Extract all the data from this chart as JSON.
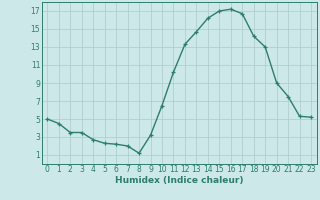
{
  "x": [
    0,
    1,
    2,
    3,
    4,
    5,
    6,
    7,
    8,
    9,
    10,
    11,
    12,
    13,
    14,
    15,
    16,
    17,
    18,
    19,
    20,
    21,
    22,
    23
  ],
  "y": [
    5,
    4.5,
    3.5,
    3.5,
    2.7,
    2.3,
    2.2,
    2.0,
    1.2,
    3.2,
    6.5,
    10.2,
    13.3,
    14.7,
    16.2,
    17.0,
    17.2,
    16.7,
    14.2,
    13.0,
    9.0,
    7.5,
    5.3,
    5.2
  ],
  "line_color": "#2e7d6e",
  "marker": "+",
  "marker_size": 3,
  "line_width": 1.0,
  "bg_color": "#cce8e8",
  "grid_color": "#aacccc",
  "xlabel": "Humidex (Indice chaleur)",
  "xlabel_fontsize": 6.5,
  "tick_fontsize": 5.5,
  "xlim": [
    -0.5,
    23.5
  ],
  "ylim": [
    0,
    18
  ],
  "yticks": [
    1,
    3,
    5,
    7,
    9,
    11,
    13,
    15,
    17
  ],
  "xticks": [
    0,
    1,
    2,
    3,
    4,
    5,
    6,
    7,
    8,
    9,
    10,
    11,
    12,
    13,
    14,
    15,
    16,
    17,
    18,
    19,
    20,
    21,
    22,
    23
  ]
}
